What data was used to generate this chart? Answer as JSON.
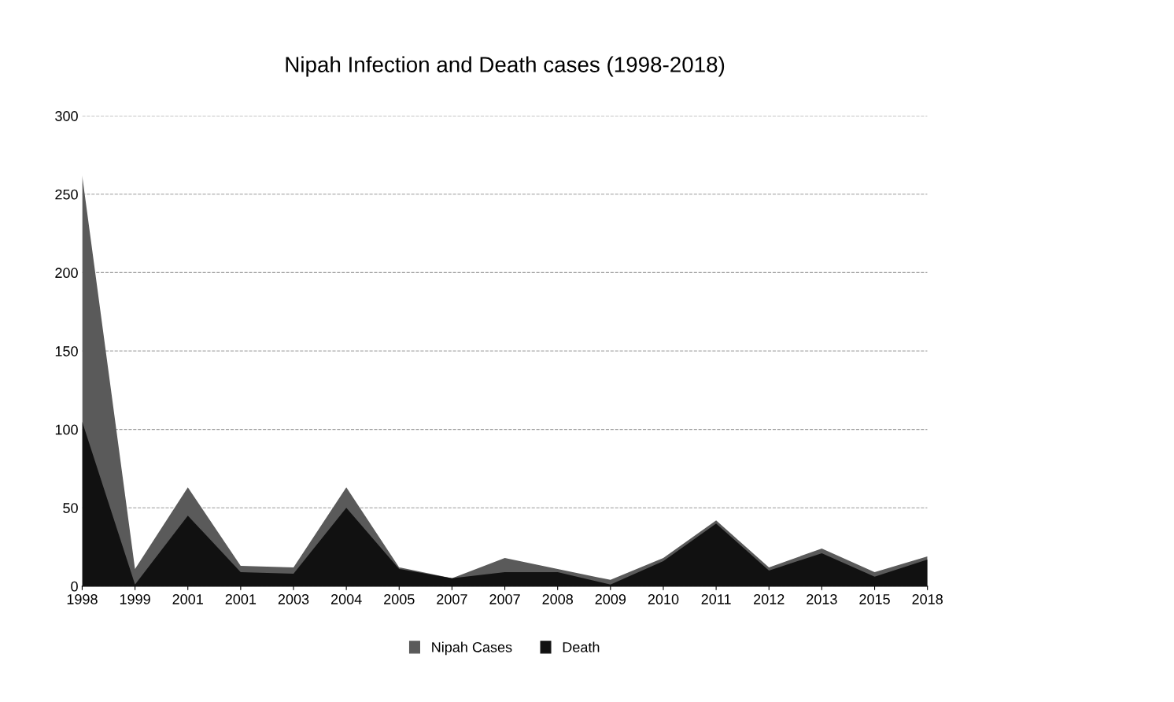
{
  "chart_data": {
    "type": "area",
    "title": "Nipah Infection and Death cases (1998-2018)",
    "categories": [
      "1998",
      "1999",
      "2001",
      "2001",
      "2003",
      "2004",
      "2005",
      "2007",
      "2007",
      "2008",
      "2009",
      "2010",
      "2011",
      "2012",
      "2013",
      "2015",
      "2018"
    ],
    "series": [
      {
        "name": "Nipah Cases",
        "color": "#5a5a5a",
        "values": [
          262,
          11,
          63,
          13,
          12,
          63,
          12,
          5,
          18,
          11,
          4,
          18,
          42,
          12,
          24,
          9,
          19
        ]
      },
      {
        "name": "Death",
        "color": "#111111",
        "values": [
          105,
          1,
          45,
          9,
          8,
          50,
          11,
          5,
          9,
          9,
          1,
          16,
          40,
          10,
          21,
          6,
          17
        ]
      }
    ],
    "ylim": [
      0,
      300
    ],
    "yticks": [
      0,
      50,
      100,
      150,
      200,
      250,
      300
    ],
    "grid": "y",
    "legend": "bottom"
  }
}
